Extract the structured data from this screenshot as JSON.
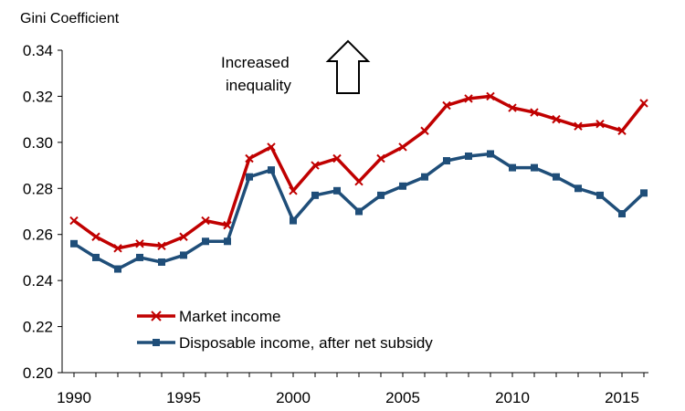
{
  "chart_data": {
    "type": "line",
    "ylabel": "Gini Coefficient",
    "xlabel": "",
    "ylim": [
      0.2,
      0.34
    ],
    "xlim": [
      1990,
      2016
    ],
    "yticks": [
      "0.20",
      "0.22",
      "0.24",
      "0.26",
      "0.28",
      "0.30",
      "0.32",
      "0.34"
    ],
    "xticks": [
      "1990",
      "1995",
      "2000",
      "2005",
      "2010",
      "2015"
    ],
    "annotation": {
      "line1": "Increased",
      "line2": "inequality",
      "icon": "up-arrow-icon"
    },
    "legend_position": "bottom-left",
    "x": [
      1990,
      1991,
      1992,
      1993,
      1994,
      1995,
      1996,
      1997,
      1998,
      1999,
      2000,
      2001,
      2002,
      2003,
      2004,
      2005,
      2006,
      2007,
      2008,
      2009,
      2010,
      2011,
      2012,
      2013,
      2014,
      2015,
      2016
    ],
    "series": [
      {
        "name": "Market income",
        "color": "#C00000",
        "marker": "x",
        "values": [
          0.266,
          0.259,
          0.254,
          0.256,
          0.255,
          0.259,
          0.266,
          0.264,
          0.293,
          0.298,
          0.279,
          0.29,
          0.293,
          0.283,
          0.293,
          0.298,
          0.305,
          0.316,
          0.319,
          0.32,
          0.315,
          0.313,
          0.31,
          0.307,
          0.308,
          0.305,
          0.317
        ]
      },
      {
        "name": "Disposable income, after net subsidy",
        "color": "#1F4E79",
        "marker": "square",
        "values": [
          0.256,
          0.25,
          0.245,
          0.25,
          0.248,
          0.251,
          0.257,
          0.257,
          0.285,
          0.288,
          0.266,
          0.277,
          0.279,
          0.27,
          0.277,
          0.281,
          0.285,
          0.292,
          0.294,
          0.295,
          0.289,
          0.289,
          0.285,
          0.28,
          0.277,
          0.269,
          0.278
        ]
      }
    ]
  }
}
